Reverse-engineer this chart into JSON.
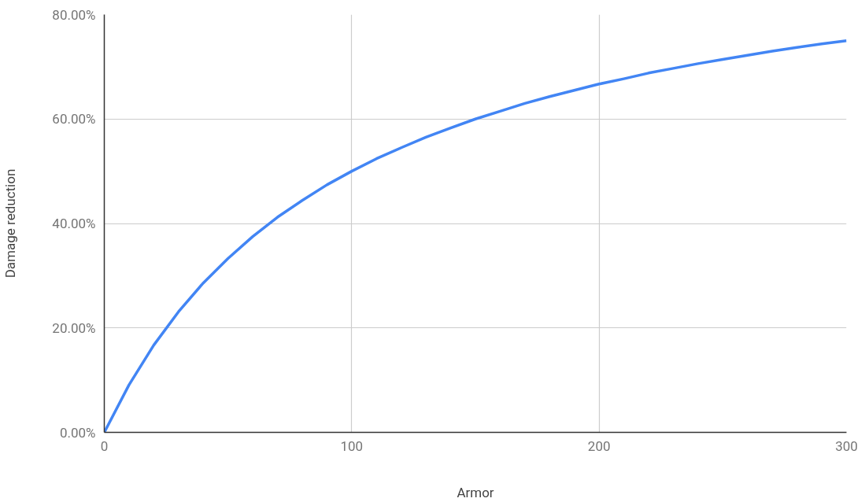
{
  "chart_data": {
    "type": "line",
    "xlabel": "Armor",
    "ylabel": "Damage reduction",
    "x": [
      0,
      10,
      20,
      30,
      40,
      50,
      60,
      70,
      80,
      90,
      100,
      110,
      120,
      130,
      140,
      150,
      160,
      170,
      180,
      190,
      200,
      210,
      220,
      230,
      240,
      250,
      260,
      270,
      280,
      290,
      300
    ],
    "series": [
      {
        "color": "#4285f4",
        "values": [
          0,
          9.1,
          16.7,
          23.1,
          28.6,
          33.3,
          37.5,
          41.2,
          44.4,
          47.4,
          50.0,
          52.4,
          54.5,
          56.5,
          58.3,
          60.0,
          61.5,
          63.0,
          64.3,
          65.5,
          66.7,
          67.7,
          68.8,
          69.7,
          70.6,
          71.4,
          72.2,
          73.0,
          73.7,
          74.4,
          75.0
        ]
      }
    ],
    "xlim": [
      0,
      300
    ],
    "xticks": [
      0,
      100,
      200,
      300
    ],
    "ylim": [
      0,
      80
    ],
    "yticks": [
      {
        "value": 0,
        "label": "0.00%"
      },
      {
        "value": 20,
        "label": "20.00%"
      },
      {
        "value": 40,
        "label": "40.00%"
      },
      {
        "value": 60,
        "label": "60.00%"
      },
      {
        "value": 80,
        "label": "80.00%"
      }
    ],
    "grid": true,
    "marker": "none",
    "line_style": "solid"
  }
}
